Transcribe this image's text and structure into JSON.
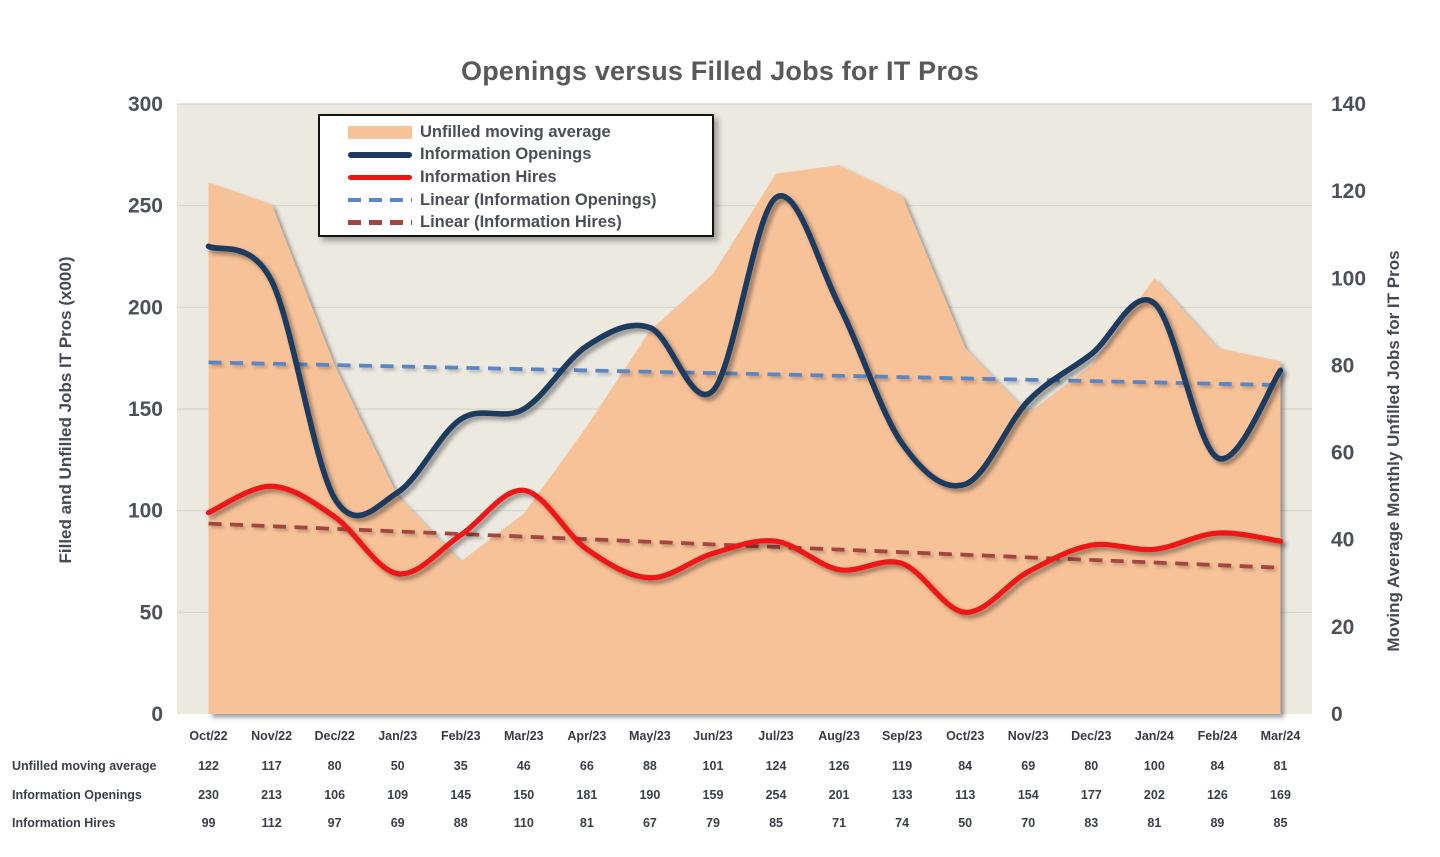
{
  "chart": {
    "title": "Openings versus Filled Jobs for IT Pros",
    "left_axis": {
      "title": "Filled and Unfilled Jobs IT Pros (x000)",
      "min": 0,
      "max": 300,
      "step": 50,
      "ticks": [
        0,
        50,
        100,
        150,
        200,
        250,
        300
      ]
    },
    "right_axis": {
      "title": "Moving Average Monthly Unfilled Jobs for IT Pros",
      "min": 0,
      "max": 140,
      "step": 20,
      "ticks": [
        0,
        20,
        40,
        60,
        80,
        100,
        120,
        140
      ]
    },
    "legend": [
      {
        "label": "Unfilled moving average",
        "swatch": "area"
      },
      {
        "label": "Information Openings",
        "swatch": "line-navy"
      },
      {
        "label": "Information Hires",
        "swatch": "line-red"
      },
      {
        "label": "Linear (Information Openings)",
        "swatch": "dash-blue"
      },
      {
        "label": "Linear (Information Hires)",
        "swatch": "dash-dred"
      }
    ],
    "colors": {
      "title-text": "#595959",
      "tick-text": "#4C5058",
      "plot-bg": "#ECE9E1",
      "gridline": "#D6D4CB"
    }
  },
  "chart_data": {
    "type": "line",
    "title": "Openings versus Filled Jobs for IT Pros",
    "categories": [
      "Oct/22",
      "Nov/22",
      "Dec/22",
      "Jan/23",
      "Feb/23",
      "Mar/23",
      "Apr/23",
      "May/23",
      "Jun/23",
      "Jul/23",
      "Aug/23",
      "Sep/23",
      "Oct/23",
      "Nov/23",
      "Dec/23",
      "Jan/24",
      "Feb/24",
      "Mar/24"
    ],
    "series": [
      {
        "name": "Unfilled moving average",
        "type": "area",
        "axis": "right",
        "color": "#F8C298",
        "smooth": false,
        "values": [
          122,
          117,
          80,
          50,
          35,
          46,
          66,
          88,
          101,
          124,
          126,
          119,
          84,
          69,
          80,
          100,
          84,
          81
        ]
      },
      {
        "name": "Information Openings",
        "type": "line",
        "axis": "left",
        "color": "#1C3A5F",
        "smooth": true,
        "values": [
          230,
          213,
          106,
          109,
          145,
          150,
          181,
          190,
          159,
          254,
          201,
          133,
          113,
          154,
          177,
          202,
          126,
          169
        ]
      },
      {
        "name": "Information Hires",
        "type": "line",
        "axis": "left",
        "color": "#EE1414",
        "smooth": true,
        "values": [
          99,
          112,
          97,
          69,
          88,
          110,
          81,
          67,
          79,
          85,
          71,
          74,
          50,
          70,
          83,
          81,
          89,
          85
        ]
      },
      {
        "name": "Linear (Information Openings)",
        "type": "trendline",
        "axis": "left",
        "color": "#5B86C3",
        "source": "Information Openings"
      },
      {
        "name": "Linear (Information Hires)",
        "type": "trendline",
        "axis": "left",
        "color": "#A4453F",
        "source": "Information Hires"
      }
    ],
    "ylabel_left": "Filled and Unfilled Jobs IT Pros (x000)",
    "ylabel_right": "Moving Average Monthly Unfilled Jobs for IT Pros",
    "ylim_left": [
      0,
      300
    ],
    "ylim_right": [
      0,
      140
    ],
    "grid": "horizontal",
    "legend_position": "top-left-inside"
  },
  "table": {
    "row_labels": [
      "Unfilled moving average",
      "Information Openings",
      "Information Hires"
    ]
  }
}
